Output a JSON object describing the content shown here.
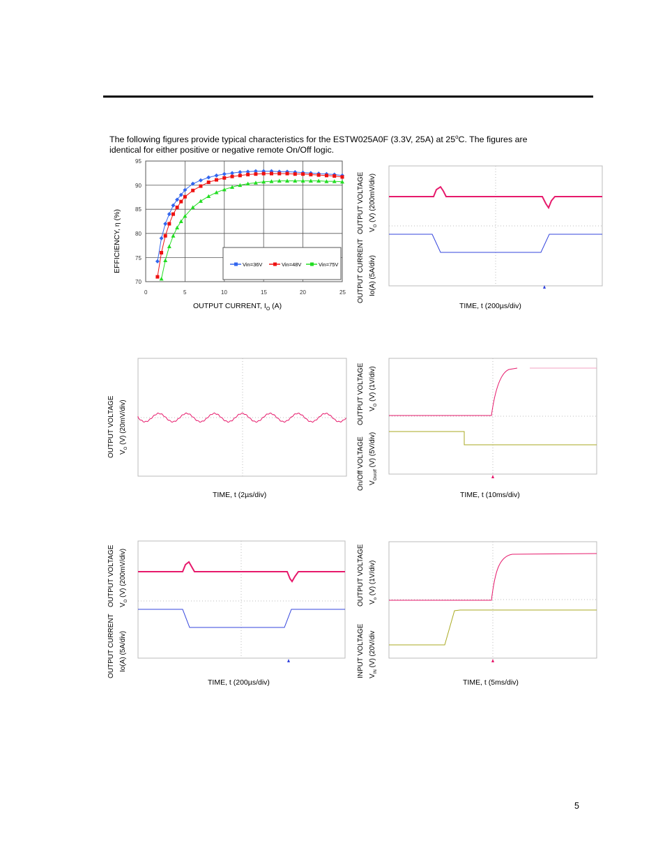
{
  "intro_line1": "The following figures provide typical characteristics for the ESTW025A0F (3.3V, 25A) at 25",
  "intro_sup": "o",
  "intro_line1_end": "C.  The figures are",
  "intro_line2": "identical for either positive or negative remote On/Off logic.",
  "page_number": "5",
  "efficiency": {
    "ylabel": "EFFICIENCY, η  (%)",
    "xlabel": "OUTPUT CURRENT, I",
    "xlabel_sub": "O",
    "xlabel_end": " (A)",
    "yticks": [
      "95",
      "90",
      "85",
      "80",
      "75",
      "70"
    ],
    "xticks": [
      "0",
      "5",
      "10",
      "15",
      "20",
      "25"
    ],
    "legend": [
      "Vin=36V",
      "Vin=48V",
      "Vin=75V"
    ]
  },
  "fig2": {
    "ylabel_top": "OUTPUT VOLTAGE",
    "ylabel_top2": "V",
    "ylabel_top2_sub": "O",
    "ylabel_top2_end": " (V) (200mV/div)",
    "ylabel_bot": "OUTPUT CURRENT",
    "ylabel_bot2": "Io(A) (5A/div)",
    "xlabel": "TIME, t (200µs/div)"
  },
  "fig3": {
    "ylabel_top": "OUTPUT VOLTAGE",
    "ylabel_top2": "V",
    "ylabel_top2_sub": "O",
    "ylabel_top2_end": " (V) (20mV/div)",
    "xlabel": "TIME, t (2µs/div)"
  },
  "fig4": {
    "ylabel_top": "OUTPUT VOLTAGE",
    "ylabel_top2": "V",
    "ylabel_top2_sub": "O",
    "ylabel_top2_end": " (V) (1V/div)",
    "ylabel_bot": "On/Off VOLTAGE",
    "ylabel_bot2": "V",
    "ylabel_bot2_sub": "On/off",
    "ylabel_bot2_end": " (V) (5V/div)",
    "xlabel": "TIME, t (10ms/div)"
  },
  "fig5": {
    "ylabel_top": "OUTPUT VOLTAGE",
    "ylabel_top2": "V",
    "ylabel_top2_sub": "O",
    "ylabel_top2_end": " (V) (200mV/div)",
    "ylabel_bot": "OUTPUT CURRENT",
    "ylabel_bot2": "Io(A) (5A/div)",
    "xlabel": "TIME, t (200µs/div)"
  },
  "fig6": {
    "ylabel_top": "OUTPUT VOLTAGE",
    "ylabel_top2": "V",
    "ylabel_top2_sub": "o",
    "ylabel_top2_end": " (V) (1V/div)",
    "ylabel_bot": "INPUT  VOLTAGE",
    "ylabel_bot2": "V",
    "ylabel_bot2_sub": "IN",
    "ylabel_bot2_end": " (V) (20V/div",
    "xlabel": "TIME, t (5ms/div)"
  },
  "colors": {
    "blue": "#3366ee",
    "red": "#ee1111",
    "green": "#22dd22",
    "trace_pink": "#e6196b",
    "trace_blue": "#3344dd",
    "trace_olive": "#aaaa22"
  },
  "chart_data": [
    {
      "type": "line",
      "x": [
        1.5,
        2,
        2.5,
        3,
        3.5,
        4,
        4.5,
        5,
        6,
        7,
        8,
        9,
        10,
        11,
        12,
        13,
        14,
        15,
        16,
        17,
        18,
        19,
        20,
        21,
        22,
        23,
        24,
        25
      ],
      "series": [
        {
          "name": "Vin=36V",
          "values": [
            74.2,
            79,
            82,
            84,
            85.8,
            87,
            88,
            89,
            90.3,
            91,
            91.6,
            92,
            92.3,
            92.5,
            92.7,
            92.8,
            92.9,
            92.9,
            92.9,
            92.8,
            92.8,
            92.7,
            92.6,
            92.5,
            92.4,
            92.3,
            92.2,
            92.0
          ]
        },
        {
          "name": "Vin=48V",
          "values": [
            71,
            76,
            79.5,
            82,
            84,
            85.4,
            86.6,
            87.6,
            88.9,
            89.8,
            90.6,
            91.1,
            91.5,
            91.8,
            92,
            92.2,
            92.3,
            92.4,
            92.4,
            92.4,
            92.4,
            92.3,
            92.3,
            92.2,
            92.1,
            92,
            91.9,
            91.7
          ]
        },
        {
          "name": "Vin=75V",
          "values": [
            69,
            70.6,
            74.4,
            77.3,
            79.5,
            81.2,
            82.5,
            83.6,
            85.4,
            86.7,
            87.7,
            88.5,
            89.1,
            89.6,
            90.0,
            90.3,
            90.5,
            90.7,
            90.8,
            90.9,
            90.9,
            90.9,
            90.9,
            90.9,
            90.9,
            90.8,
            90.8,
            90.7
          ]
        }
      ],
      "xlabel": "OUTPUT CURRENT, IO (A)",
      "ylabel": "EFFICIENCY, η  (%)",
      "xlim": [
        0,
        25
      ],
      "ylim": [
        70,
        95
      ],
      "grid": true,
      "legend": "bottom-right"
    }
  ]
}
